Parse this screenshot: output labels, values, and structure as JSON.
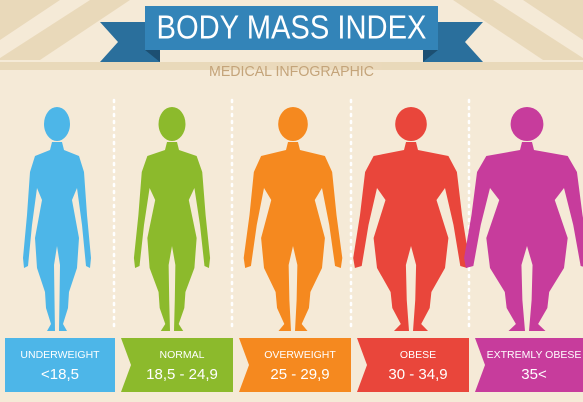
{
  "header": {
    "title": "BODY MASS INDEX",
    "subtitle": "MEDICAL INFOGRAPHIC"
  },
  "categories": [
    {
      "label": "UNDERWEIGHT",
      "range": "<18,5",
      "color": "#4db6e8"
    },
    {
      "label": "NORMAL",
      "range": "18,5 - 24,9",
      "color": "#8cba2c"
    },
    {
      "label": "OVERWEIGHT",
      "range": "25 - 29,9",
      "color": "#f5891f"
    },
    {
      "label": "OBESE",
      "range": "30 - 34,9",
      "color": "#e9463b"
    },
    {
      "label": "EXTREMLY OBESE",
      "range": "35<",
      "color": "#c73c9c"
    }
  ]
}
